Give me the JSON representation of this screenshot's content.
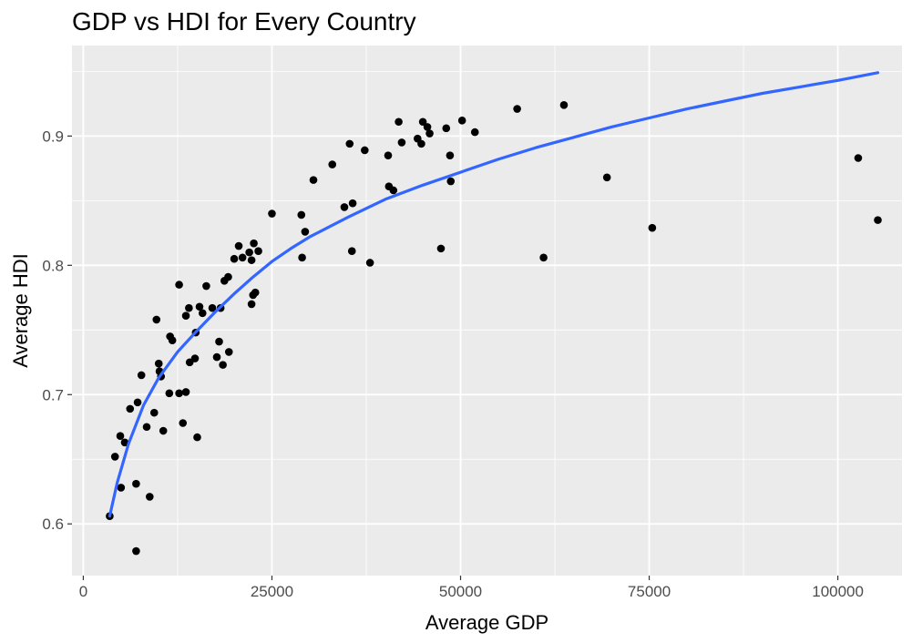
{
  "chart_data": {
    "type": "scatter",
    "title": "GDP vs HDI for Every Country",
    "xlabel": "Average GDP",
    "ylabel": "Average HDI",
    "xlim": [
      -1500,
      108500
    ],
    "ylim": [
      0.56,
      0.97
    ],
    "x_ticks": [
      0,
      25000,
      50000,
      75000,
      100000
    ],
    "x_tick_labels": [
      "0",
      "25000",
      "50000",
      "75000",
      "100000"
    ],
    "y_ticks": [
      0.6,
      0.7,
      0.8,
      0.9
    ],
    "y_tick_labels": [
      "0.6",
      "0.7",
      "0.8",
      "0.9"
    ],
    "grid": true,
    "colors": {
      "panel": "#ebebeb",
      "grid": "#ffffff",
      "points": "#000000",
      "trend": "#3366ff"
    },
    "points": [
      {
        "x": 3500,
        "y": 0.606
      },
      {
        "x": 4200,
        "y": 0.652
      },
      {
        "x": 4900,
        "y": 0.668
      },
      {
        "x": 5000,
        "y": 0.628
      },
      {
        "x": 5500,
        "y": 0.663
      },
      {
        "x": 6200,
        "y": 0.689
      },
      {
        "x": 7000,
        "y": 0.631
      },
      {
        "x": 7000,
        "y": 0.579
      },
      {
        "x": 7200,
        "y": 0.694
      },
      {
        "x": 7700,
        "y": 0.715
      },
      {
        "x": 8400,
        "y": 0.675
      },
      {
        "x": 8800,
        "y": 0.621
      },
      {
        "x": 9400,
        "y": 0.686
      },
      {
        "x": 9700,
        "y": 0.758
      },
      {
        "x": 10000,
        "y": 0.724
      },
      {
        "x": 10100,
        "y": 0.718
      },
      {
        "x": 10300,
        "y": 0.714
      },
      {
        "x": 10600,
        "y": 0.672
      },
      {
        "x": 11400,
        "y": 0.701
      },
      {
        "x": 11500,
        "y": 0.745
      },
      {
        "x": 11800,
        "y": 0.742
      },
      {
        "x": 12700,
        "y": 0.785
      },
      {
        "x": 12700,
        "y": 0.701
      },
      {
        "x": 13200,
        "y": 0.678
      },
      {
        "x": 13600,
        "y": 0.702
      },
      {
        "x": 13600,
        "y": 0.761
      },
      {
        "x": 14000,
        "y": 0.767
      },
      {
        "x": 14100,
        "y": 0.725
      },
      {
        "x": 14800,
        "y": 0.728
      },
      {
        "x": 14900,
        "y": 0.748
      },
      {
        "x": 15100,
        "y": 0.667
      },
      {
        "x": 15400,
        "y": 0.768
      },
      {
        "x": 15800,
        "y": 0.763
      },
      {
        "x": 16300,
        "y": 0.784
      },
      {
        "x": 17100,
        "y": 0.767
      },
      {
        "x": 17700,
        "y": 0.729
      },
      {
        "x": 18000,
        "y": 0.741
      },
      {
        "x": 18200,
        "y": 0.767
      },
      {
        "x": 18500,
        "y": 0.723
      },
      {
        "x": 18700,
        "y": 0.788
      },
      {
        "x": 19200,
        "y": 0.791
      },
      {
        "x": 19300,
        "y": 0.733
      },
      {
        "x": 20000,
        "y": 0.805
      },
      {
        "x": 20600,
        "y": 0.815
      },
      {
        "x": 21100,
        "y": 0.806
      },
      {
        "x": 22000,
        "y": 0.81
      },
      {
        "x": 22300,
        "y": 0.804
      },
      {
        "x": 22300,
        "y": 0.77
      },
      {
        "x": 22500,
        "y": 0.777
      },
      {
        "x": 22600,
        "y": 0.817
      },
      {
        "x": 22800,
        "y": 0.779
      },
      {
        "x": 23200,
        "y": 0.811
      },
      {
        "x": 25000,
        "y": 0.84
      },
      {
        "x": 28900,
        "y": 0.839
      },
      {
        "x": 29000,
        "y": 0.806
      },
      {
        "x": 29400,
        "y": 0.826
      },
      {
        "x": 30500,
        "y": 0.866
      },
      {
        "x": 33000,
        "y": 0.878
      },
      {
        "x": 34600,
        "y": 0.845
      },
      {
        "x": 35300,
        "y": 0.894
      },
      {
        "x": 35600,
        "y": 0.811
      },
      {
        "x": 35700,
        "y": 0.848
      },
      {
        "x": 37300,
        "y": 0.889
      },
      {
        "x": 38000,
        "y": 0.802
      },
      {
        "x": 40400,
        "y": 0.885
      },
      {
        "x": 40500,
        "y": 0.861
      },
      {
        "x": 41100,
        "y": 0.858
      },
      {
        "x": 41800,
        "y": 0.911
      },
      {
        "x": 42200,
        "y": 0.895
      },
      {
        "x": 44300,
        "y": 0.898
      },
      {
        "x": 44800,
        "y": 0.894
      },
      {
        "x": 45000,
        "y": 0.911
      },
      {
        "x": 45600,
        "y": 0.907
      },
      {
        "x": 45900,
        "y": 0.902
      },
      {
        "x": 47400,
        "y": 0.813
      },
      {
        "x": 48100,
        "y": 0.906
      },
      {
        "x": 48600,
        "y": 0.885
      },
      {
        "x": 48700,
        "y": 0.865
      },
      {
        "x": 50200,
        "y": 0.912
      },
      {
        "x": 51900,
        "y": 0.903
      },
      {
        "x": 57500,
        "y": 0.921
      },
      {
        "x": 61000,
        "y": 0.806
      },
      {
        "x": 63700,
        "y": 0.924
      },
      {
        "x": 69400,
        "y": 0.868
      },
      {
        "x": 75400,
        "y": 0.829
      },
      {
        "x": 102700,
        "y": 0.883
      },
      {
        "x": 105300,
        "y": 0.835
      }
    ],
    "trend_line": [
      {
        "x": 3500,
        "y": 0.606
      },
      {
        "x": 4500,
        "y": 0.632
      },
      {
        "x": 6000,
        "y": 0.662
      },
      {
        "x": 8000,
        "y": 0.692
      },
      {
        "x": 10000,
        "y": 0.713
      },
      {
        "x": 12500,
        "y": 0.733
      },
      {
        "x": 15000,
        "y": 0.749
      },
      {
        "x": 17500,
        "y": 0.764
      },
      {
        "x": 20000,
        "y": 0.778
      },
      {
        "x": 22500,
        "y": 0.791
      },
      {
        "x": 25000,
        "y": 0.803
      },
      {
        "x": 27500,
        "y": 0.813
      },
      {
        "x": 30000,
        "y": 0.822
      },
      {
        "x": 35000,
        "y": 0.837
      },
      {
        "x": 40000,
        "y": 0.851
      },
      {
        "x": 45000,
        "y": 0.862
      },
      {
        "x": 50000,
        "y": 0.872
      },
      {
        "x": 55000,
        "y": 0.882
      },
      {
        "x": 60000,
        "y": 0.891
      },
      {
        "x": 65000,
        "y": 0.899
      },
      {
        "x": 70000,
        "y": 0.907
      },
      {
        "x": 75000,
        "y": 0.914
      },
      {
        "x": 80000,
        "y": 0.921
      },
      {
        "x": 85000,
        "y": 0.927
      },
      {
        "x": 90000,
        "y": 0.933
      },
      {
        "x": 95000,
        "y": 0.938
      },
      {
        "x": 100000,
        "y": 0.943
      },
      {
        "x": 105300,
        "y": 0.949
      }
    ]
  }
}
